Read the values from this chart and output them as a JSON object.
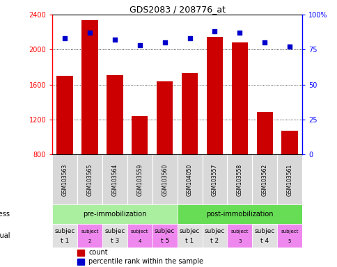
{
  "title": "GDS2083 / 208776_at",
  "samples": [
    "GSM103563",
    "GSM103565",
    "GSM103564",
    "GSM103559",
    "GSM103560",
    "GSM104050",
    "GSM103557",
    "GSM103558",
    "GSM103562",
    "GSM103561"
  ],
  "counts": [
    1700,
    2340,
    1710,
    1240,
    1640,
    1730,
    2150,
    2080,
    1290,
    1070
  ],
  "percentile_ranks": [
    83,
    87,
    82,
    78,
    80,
    83,
    88,
    87,
    80,
    77
  ],
  "ymin": 800,
  "ymax": 2400,
  "yticks": [
    800,
    1200,
    1600,
    2000,
    2400
  ],
  "right_yticks": [
    0,
    25,
    50,
    75,
    100
  ],
  "bar_color": "#cc0000",
  "dot_color": "#0000cc",
  "stress_labels": [
    "pre-immobilization",
    "post-immobilization"
  ],
  "stress_color_pre": "#aaeea0",
  "stress_color_post": "#66dd55",
  "individual_labels_top": [
    "subjec",
    "subject",
    "subjec",
    "subject",
    "subjec",
    "subjec",
    "subjec",
    "subject",
    "subjec",
    "subject"
  ],
  "individual_labels_bot": [
    "t 1",
    "2",
    "t 3",
    "4",
    "t 5",
    "t 1",
    "t 2",
    "3",
    "t 4",
    "5"
  ],
  "individual_colors": [
    "#e0e0e0",
    "#ee88ee",
    "#e0e0e0",
    "#ee88ee",
    "#ee88ee",
    "#e0e0e0",
    "#e0e0e0",
    "#ee88ee",
    "#e0e0e0",
    "#ee88ee"
  ],
  "individual_fontsize_odd": 6.5,
  "individual_fontsize_even": 5.0,
  "sample_box_color": "#d8d8d8",
  "legend_count_color": "#cc0000",
  "legend_dot_color": "#0000cc"
}
